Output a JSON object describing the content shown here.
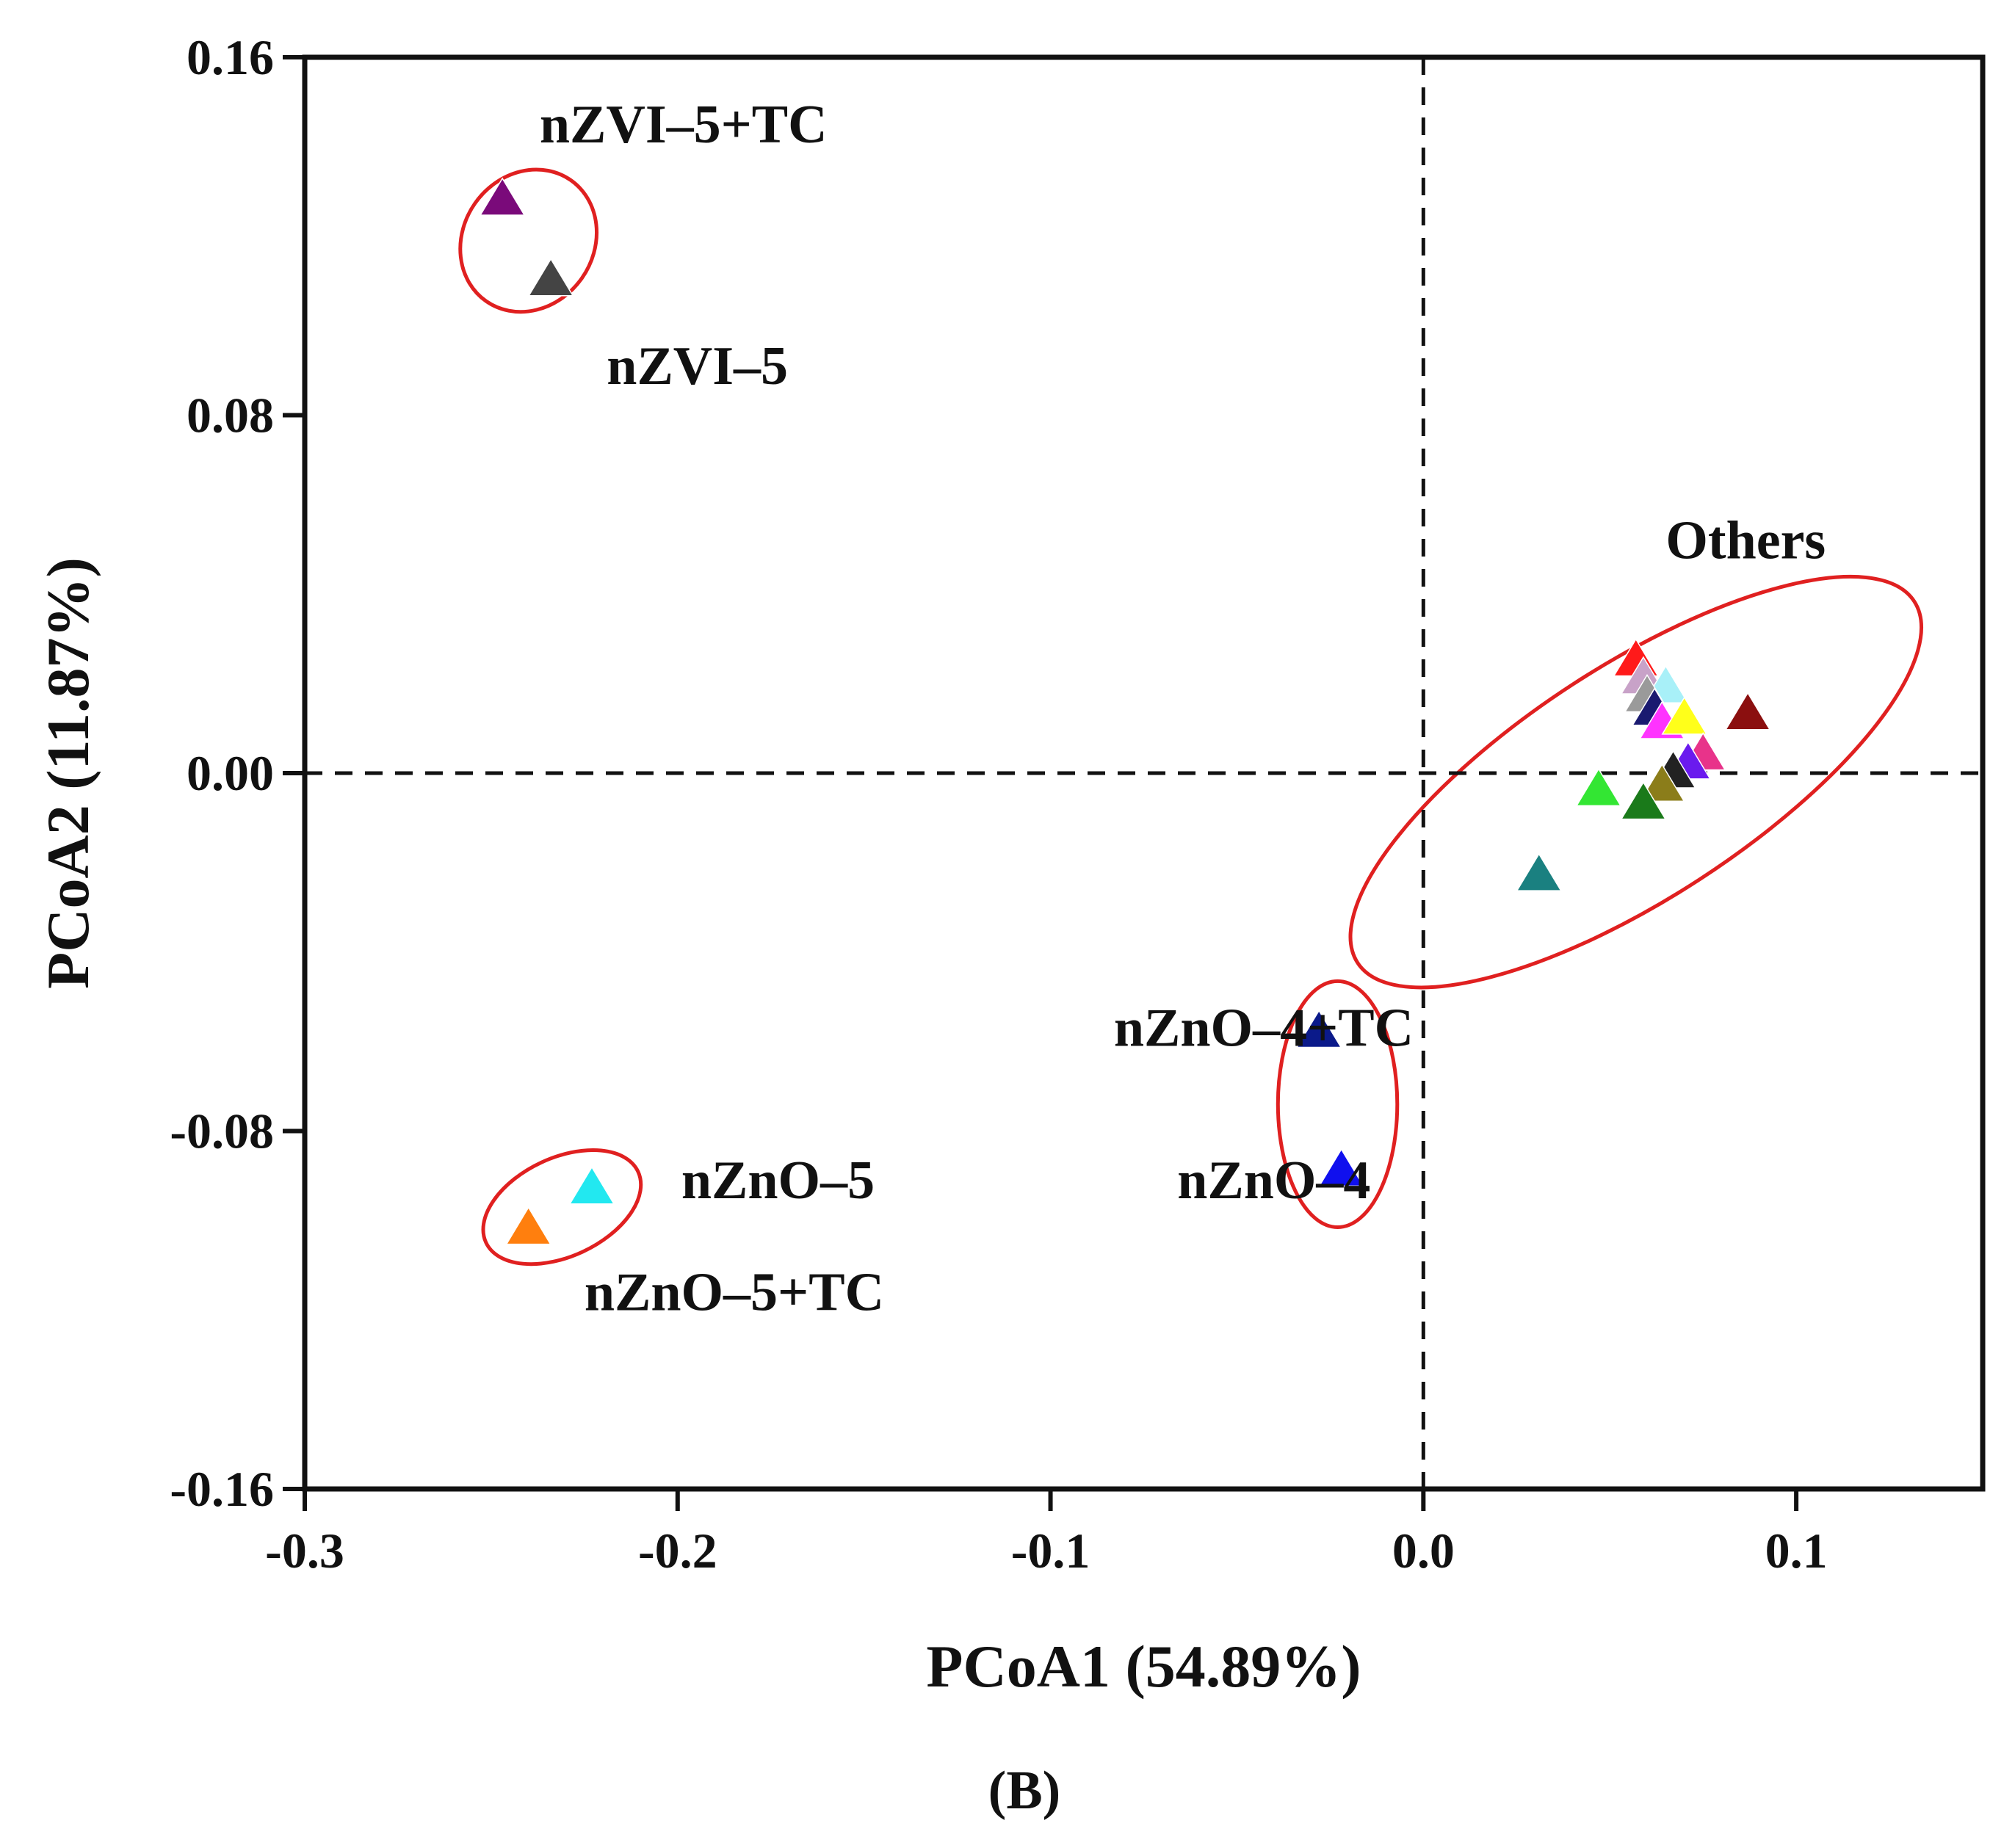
{
  "chart_data": {
    "type": "scatter",
    "panel_label": "(B)",
    "xlabel": "PCoA1 (54.89%)",
    "ylabel": "PCoA2 (11.87%)",
    "xlim": [
      -0.3,
      0.15
    ],
    "ylim": [
      -0.16,
      0.16
    ],
    "x_ticks": [
      -0.3,
      -0.2,
      -0.1,
      0.0,
      0.1
    ],
    "x_tick_labels": [
      "-0.3",
      "-0.2",
      "-0.1",
      "0.0",
      "0.1"
    ],
    "y_ticks": [
      0.16,
      0.08,
      0.0,
      -0.08,
      -0.16
    ],
    "y_tick_labels": [
      "0.16",
      "0.08",
      "0.00",
      "-0.08",
      "-0.16"
    ],
    "reference_lines": {
      "x": 0.0,
      "y": 0.0,
      "style": "dashed"
    },
    "marker": "triangle",
    "points": [
      {
        "x": -0.247,
        "y": 0.128,
        "color": "#7a0a7a"
      },
      {
        "x": -0.234,
        "y": 0.11,
        "color": "#444444"
      },
      {
        "x": -0.223,
        "y": -0.093,
        "color": "#22e8f0"
      },
      {
        "x": -0.24,
        "y": -0.102,
        "color": "#ff7f0e"
      },
      {
        "x": -0.028,
        "y": -0.058,
        "color": "#0b1a8a"
      },
      {
        "x": -0.022,
        "y": -0.089,
        "color": "#1010ee"
      },
      {
        "x": 0.057,
        "y": 0.025,
        "color": "#ff1a1a"
      },
      {
        "x": 0.059,
        "y": 0.021,
        "color": "#c8a2c8"
      },
      {
        "x": 0.065,
        "y": 0.019,
        "color": "#a8f0f8"
      },
      {
        "x": 0.06,
        "y": 0.017,
        "color": "#9a9a9a"
      },
      {
        "x": 0.062,
        "y": 0.014,
        "color": "#1a1a70"
      },
      {
        "x": 0.064,
        "y": 0.011,
        "color": "#ff33ff"
      },
      {
        "x": 0.07,
        "y": 0.012,
        "color": "#ffff1a"
      },
      {
        "x": 0.087,
        "y": 0.013,
        "color": "#8b0f0f"
      },
      {
        "x": 0.075,
        "y": 0.004,
        "color": "#e8338a"
      },
      {
        "x": 0.071,
        "y": 0.002,
        "color": "#6a1aee"
      },
      {
        "x": 0.067,
        "y": 0.0,
        "color": "#222222"
      },
      {
        "x": 0.064,
        "y": -0.003,
        "color": "#8b7d1a"
      },
      {
        "x": 0.047,
        "y": -0.004,
        "color": "#33e633"
      },
      {
        "x": 0.059,
        "y": -0.007,
        "color": "#1a7a1a"
      },
      {
        "x": 0.031,
        "y": -0.023,
        "color": "#1a8080"
      }
    ],
    "groups": [
      {
        "labels": [
          "nZVI–5+TC",
          "nZVI–5"
        ],
        "center": [
          -0.24,
          0.119
        ],
        "radii": [
          0.0175,
          0.0165
        ],
        "rotation_deg": 35
      },
      {
        "labels": [
          "nZnO–5",
          "nZnO–5+TC"
        ],
        "center": [
          -0.231,
          -0.097
        ],
        "radii": [
          0.0225,
          0.011
        ],
        "rotation_deg": -25
      },
      {
        "labels": [
          "nZnO–4+TC",
          "nZnO–4"
        ],
        "center": [
          -0.023,
          -0.074
        ],
        "radii": [
          0.016,
          0.0275
        ],
        "rotation_deg": 0
      },
      {
        "labels": [
          "Others"
        ],
        "center": [
          0.057,
          -0.002
        ],
        "radii": [
          0.089,
          0.026
        ],
        "rotation_deg": -33
      }
    ],
    "annotations": [
      {
        "text": "nZVI–5+TC",
        "x": -0.237,
        "y": 0.141
      },
      {
        "text": "nZVI–5",
        "x": -0.219,
        "y": 0.087
      },
      {
        "text": "nZnO–5",
        "x": -0.199,
        "y": -0.095
      },
      {
        "text": "nZnO–5+TC",
        "x": -0.225,
        "y": -0.12
      },
      {
        "text": "nZnO–4+TC",
        "x": -0.083,
        "y": -0.061
      },
      {
        "text": "nZnO–4",
        "x": -0.066,
        "y": -0.095
      },
      {
        "text": "Others",
        "x": 0.065,
        "y": 0.048
      }
    ],
    "group_outline_color": "#e02020"
  }
}
